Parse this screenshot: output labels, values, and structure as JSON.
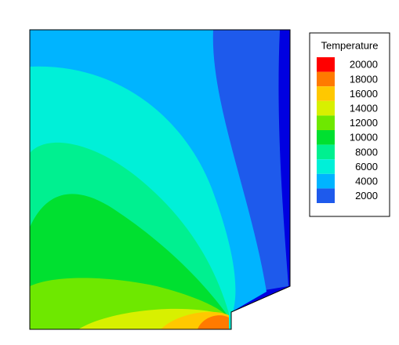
{
  "chart_data": {
    "type": "contour",
    "legend_title": "Temperature",
    "levels": [
      20000,
      18000,
      16000,
      14000,
      12000,
      10000,
      8000,
      6000,
      4000,
      2000
    ],
    "colors": [
      "#ff0000",
      "#ff7a00",
      "#ffc800",
      "#d8f000",
      "#6ee800",
      "#00e030",
      "#00f090",
      "#00f0d8",
      "#00b4ff",
      "#1e5aec"
    ],
    "edge_color": "#0000e0"
  }
}
